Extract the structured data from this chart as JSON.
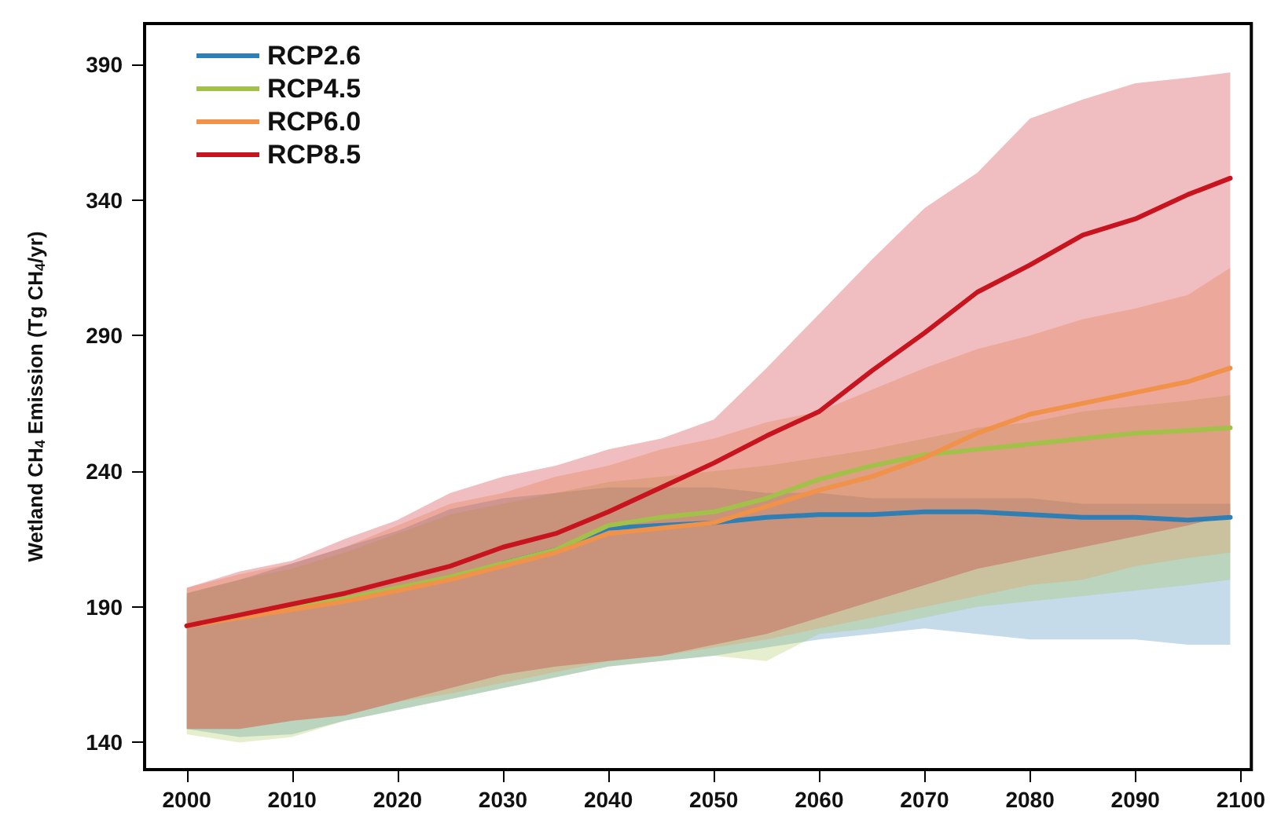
{
  "chart_data": {
    "type": "line",
    "ylabel": "Wetland CH$_{4}$ Emission (Tg CH$_{4}$/yr)",
    "x": [
      2000,
      2005,
      2010,
      2015,
      2020,
      2025,
      2030,
      2035,
      2040,
      2045,
      2050,
      2055,
      2060,
      2065,
      2070,
      2075,
      2080,
      2085,
      2090,
      2095,
      2099
    ],
    "xlim": [
      1996,
      2101
    ],
    "xticks": [
      2000,
      2010,
      2020,
      2030,
      2040,
      2050,
      2060,
      2070,
      2080,
      2090,
      2100
    ],
    "ylim": [
      130,
      405
    ],
    "yticks": [
      140,
      190,
      240,
      290,
      340,
      390
    ],
    "grid": false,
    "legend": "top left",
    "marker": "none",
    "line_style": "solid",
    "series": [
      {
        "name": "RCP2.6",
        "color": "#2f7fb5",
        "values": [
          null,
          null,
          null,
          null,
          null,
          null,
          206,
          211,
          219,
          220,
          221,
          223,
          224,
          224,
          225,
          225,
          224,
          223,
          223,
          222,
          223
        ],
        "lower": [
          145,
          142,
          143,
          148,
          152,
          156,
          160,
          164,
          168,
          170,
          172,
          175,
          178,
          180,
          182,
          180,
          178,
          178,
          178,
          176,
          176
        ],
        "upper": [
          195,
          200,
          206,
          212,
          218,
          226,
          230,
          232,
          234,
          234,
          234,
          232,
          232,
          230,
          230,
          230,
          230,
          228,
          228,
          228,
          228
        ]
      },
      {
        "name": "RCP4.5",
        "color": "#a3c14a",
        "values": [
          183,
          186,
          190,
          193,
          197,
          201,
          206,
          211,
          220,
          223,
          225,
          230,
          237,
          242,
          246,
          248,
          250,
          252,
          254,
          255,
          256
        ],
        "lower": [
          143,
          140,
          142,
          148,
          152,
          156,
          160,
          164,
          168,
          170,
          172,
          170,
          180,
          182,
          186,
          190,
          192,
          194,
          196,
          198,
          200
        ],
        "upper": [
          195,
          200,
          204,
          210,
          217,
          224,
          228,
          232,
          236,
          238,
          240,
          242,
          245,
          248,
          252,
          256,
          258,
          262,
          264,
          266,
          268
        ]
      },
      {
        "name": "RCP6.0",
        "color": "#f0924a",
        "values": [
          183,
          186,
          189,
          192,
          196,
          200,
          205,
          210,
          217,
          219,
          221,
          227,
          233,
          238,
          245,
          254,
          261,
          265,
          269,
          273,
          278
        ],
        "lower": [
          145,
          145,
          148,
          150,
          155,
          158,
          162,
          166,
          170,
          172,
          175,
          178,
          182,
          186,
          190,
          194,
          198,
          200,
          205,
          208,
          210
        ],
        "upper": [
          197,
          202,
          206,
          212,
          220,
          228,
          232,
          238,
          242,
          248,
          252,
          258,
          262,
          270,
          278,
          285,
          290,
          296,
          300,
          305,
          315
        ]
      },
      {
        "name": "RCP8.5",
        "color": "#c8141e",
        "values": [
          183,
          187,
          191,
          195,
          200,
          205,
          212,
          217,
          225,
          234,
          243,
          253,
          262,
          277,
          291,
          306,
          316,
          327,
          333,
          342,
          348
        ],
        "lower": [
          145,
          145,
          148,
          150,
          155,
          160,
          165,
          168,
          170,
          172,
          176,
          180,
          186,
          192,
          198,
          204,
          208,
          212,
          216,
          220,
          224
        ],
        "upper": [
          197,
          203,
          207,
          215,
          222,
          232,
          238,
          242,
          248,
          252,
          259,
          278,
          298,
          318,
          337,
          350,
          370,
          377,
          383,
          385,
          387
        ]
      }
    ]
  }
}
